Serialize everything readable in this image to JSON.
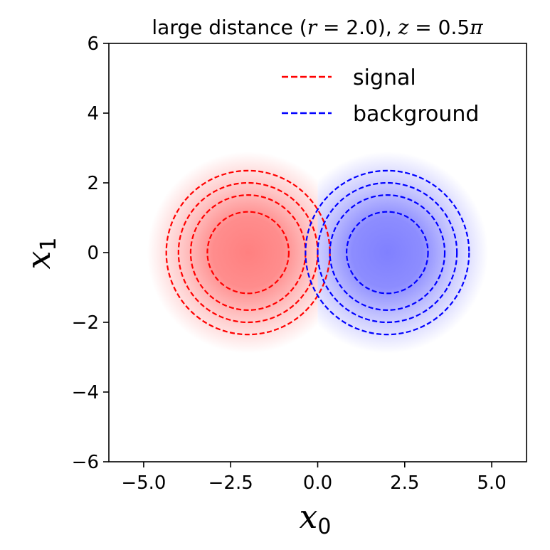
{
  "chart_data": {
    "type": "contour",
    "title": {
      "prefix": "large distance (",
      "r_var": "r",
      "r_eq": " = 2.0), ",
      "z_var": "z",
      "z_eq": " = 0.5",
      "pi": "π"
    },
    "xlabel": {
      "base": "x",
      "sub": "0"
    },
    "ylabel": {
      "base": "x",
      "sub": "1"
    },
    "xlim": [
      -6,
      6
    ],
    "ylim": [
      -6,
      6
    ],
    "xticks": [
      -5.0,
      -2.5,
      0.0,
      2.5,
      5.0
    ],
    "xtick_labels": [
      "−5.0",
      "−2.5",
      "0.0",
      "2.5",
      "5.0"
    ],
    "yticks": [
      -6,
      -4,
      -2,
      0,
      2,
      4,
      6
    ],
    "ytick_labels": [
      "−6",
      "−4",
      "−2",
      "0",
      "2",
      "4",
      "6"
    ],
    "grid": false,
    "legend_position": "top-right",
    "series": [
      {
        "name": "signal",
        "color": "#ff0000",
        "fill_color": "#ff8080",
        "center": [
          -2.0,
          0.0
        ],
        "contour_radii": [
          1.17,
          1.65,
          2.0,
          2.35
        ]
      },
      {
        "name": "background",
        "color": "#0000ff",
        "fill_color": "#8080ff",
        "center": [
          2.0,
          0.0
        ],
        "contour_radii": [
          1.17,
          1.65,
          2.0,
          2.35
        ]
      }
    ]
  }
}
